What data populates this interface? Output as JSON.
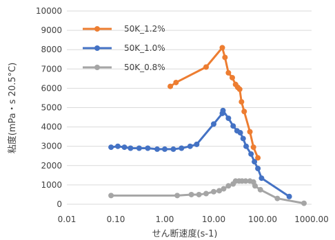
{
  "chart_data": {
    "type": "scatter",
    "title": "",
    "xlabel": "せん断速度(s-1)",
    "ylabel": "粘度(mPa・s 20.5°C)",
    "xscale": "log",
    "xlim": [
      0.01,
      1000
    ],
    "ylim": [
      0,
      10000
    ],
    "x_ticks": [
      "0.01",
      "0.10",
      "1.00",
      "10.00",
      "100.00",
      "1000.00"
    ],
    "y_ticks": [
      "0",
      "1000",
      "2000",
      "3000",
      "4000",
      "5000",
      "6000",
      "7000",
      "8000",
      "9000",
      "10000"
    ],
    "grid": "horizontal",
    "legend_position": "top-left",
    "series": [
      {
        "name": "50K_1.2%",
        "color": "#ED7D31",
        "points": [
          [
            1.3,
            6100
          ],
          [
            1.7,
            6300
          ],
          [
            7.0,
            7100
          ],
          [
            15.0,
            8100
          ],
          [
            17.0,
            7600
          ],
          [
            20.0,
            6800
          ],
          [
            24.0,
            6550
          ],
          [
            28.0,
            6200
          ],
          [
            31.0,
            6050
          ],
          [
            34.0,
            5950
          ],
          [
            37.0,
            5300
          ],
          [
            42.0,
            4800
          ],
          [
            55.0,
            3750
          ],
          [
            65.0,
            2950
          ],
          [
            80.0,
            2400
          ]
        ]
      },
      {
        "name": "50K_1.0%",
        "color": "#4472C4",
        "points": [
          [
            0.08,
            2950
          ],
          [
            0.11,
            3000
          ],
          [
            0.15,
            2950
          ],
          [
            0.2,
            2900
          ],
          [
            0.3,
            2900
          ],
          [
            0.45,
            2900
          ],
          [
            0.7,
            2850
          ],
          [
            1.0,
            2850
          ],
          [
            1.5,
            2850
          ],
          [
            2.2,
            2900
          ],
          [
            3.3,
            3000
          ],
          [
            4.5,
            3100
          ],
          [
            10.0,
            4150
          ],
          [
            15.0,
            4700
          ],
          [
            15.5,
            4850
          ],
          [
            20.0,
            4450
          ],
          [
            25.0,
            4050
          ],
          [
            30.0,
            3800
          ],
          [
            35.0,
            3700
          ],
          [
            40.0,
            3400
          ],
          [
            46.0,
            3000
          ],
          [
            58.0,
            2600
          ],
          [
            68.0,
            2200
          ],
          [
            80.0,
            1850
          ],
          [
            95.0,
            1350
          ],
          [
            350.0,
            400
          ]
        ]
      },
      {
        "name": "50K_0.8%",
        "color": "#A5A5A5",
        "points": [
          [
            0.08,
            450
          ],
          [
            1.8,
            450
          ],
          [
            3.5,
            500
          ],
          [
            5.0,
            500
          ],
          [
            7.0,
            550
          ],
          [
            10.0,
            650
          ],
          [
            13.0,
            700
          ],
          [
            16.0,
            800
          ],
          [
            20.0,
            950
          ],
          [
            25.0,
            1050
          ],
          [
            28.0,
            1200
          ],
          [
            33.0,
            1200
          ],
          [
            38.0,
            1200
          ],
          [
            45.0,
            1200
          ],
          [
            55.0,
            1200
          ],
          [
            65.0,
            1150
          ],
          [
            70.0,
            950
          ],
          [
            90.0,
            750
          ],
          [
            200.0,
            300
          ],
          [
            700.0,
            50
          ]
        ]
      }
    ]
  }
}
